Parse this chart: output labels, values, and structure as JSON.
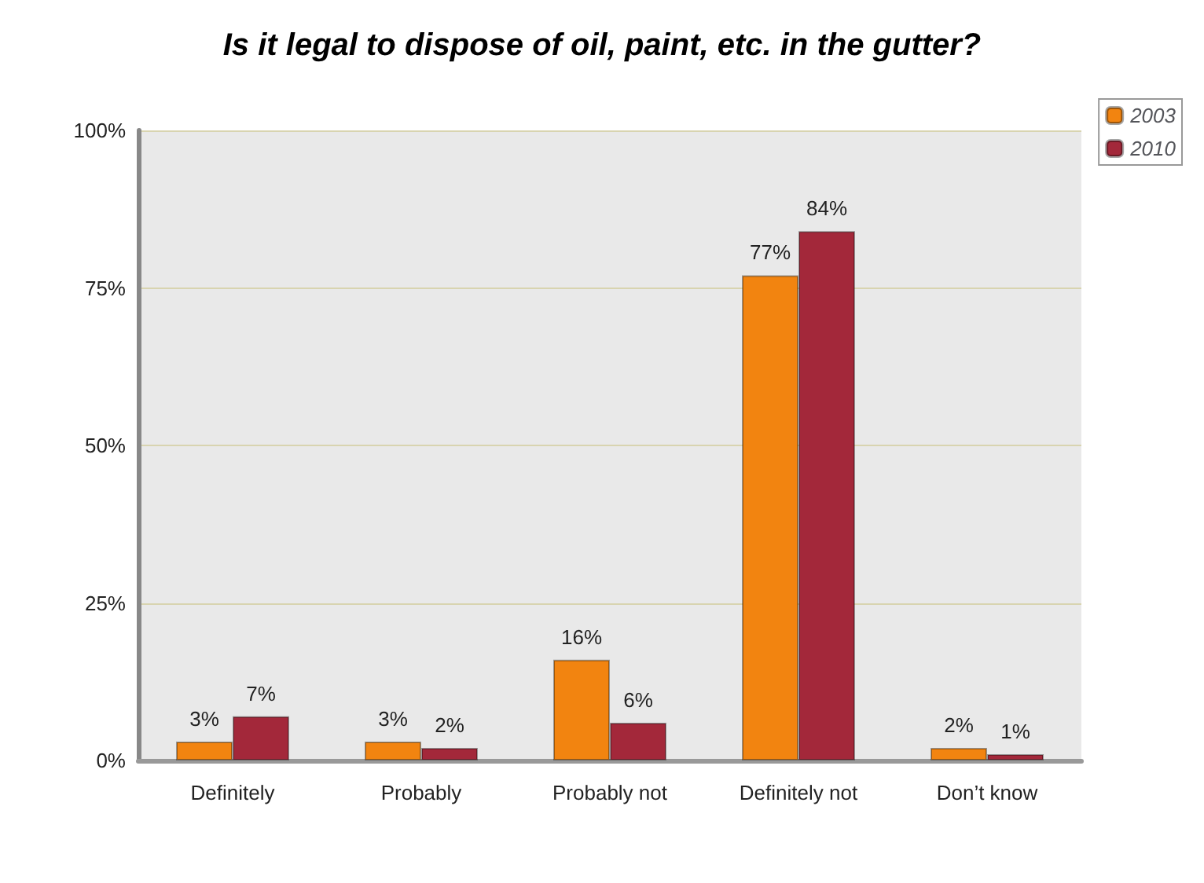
{
  "chart_data": {
    "type": "bar",
    "title": "Is it legal to dispose of oil, paint, etc. in the gutter?",
    "categories": [
      "Definitely",
      "Probably",
      "Probably not",
      "Definitely not",
      "Don’t know"
    ],
    "series": [
      {
        "name": "2003",
        "color": "#f28410",
        "values": [
          3,
          3,
          16,
          77,
          2
        ],
        "value_labels": [
          "3%",
          "3%",
          "16%",
          "77%",
          "2%"
        ]
      },
      {
        "name": "2010",
        "color": "#a3283a",
        "values": [
          7,
          2,
          6,
          84,
          1
        ],
        "value_labels": [
          "7%",
          "2%",
          "6%",
          "84%",
          "1%"
        ]
      }
    ],
    "ylim": [
      0,
      100
    ],
    "yticks": [
      {
        "value": 0,
        "label": "0%"
      },
      {
        "value": 25,
        "label": "25%"
      },
      {
        "value": 50,
        "label": "50%"
      },
      {
        "value": 75,
        "label": "75%"
      },
      {
        "value": 100,
        "label": "100%"
      }
    ],
    "grid": "y",
    "legend": "top right"
  }
}
